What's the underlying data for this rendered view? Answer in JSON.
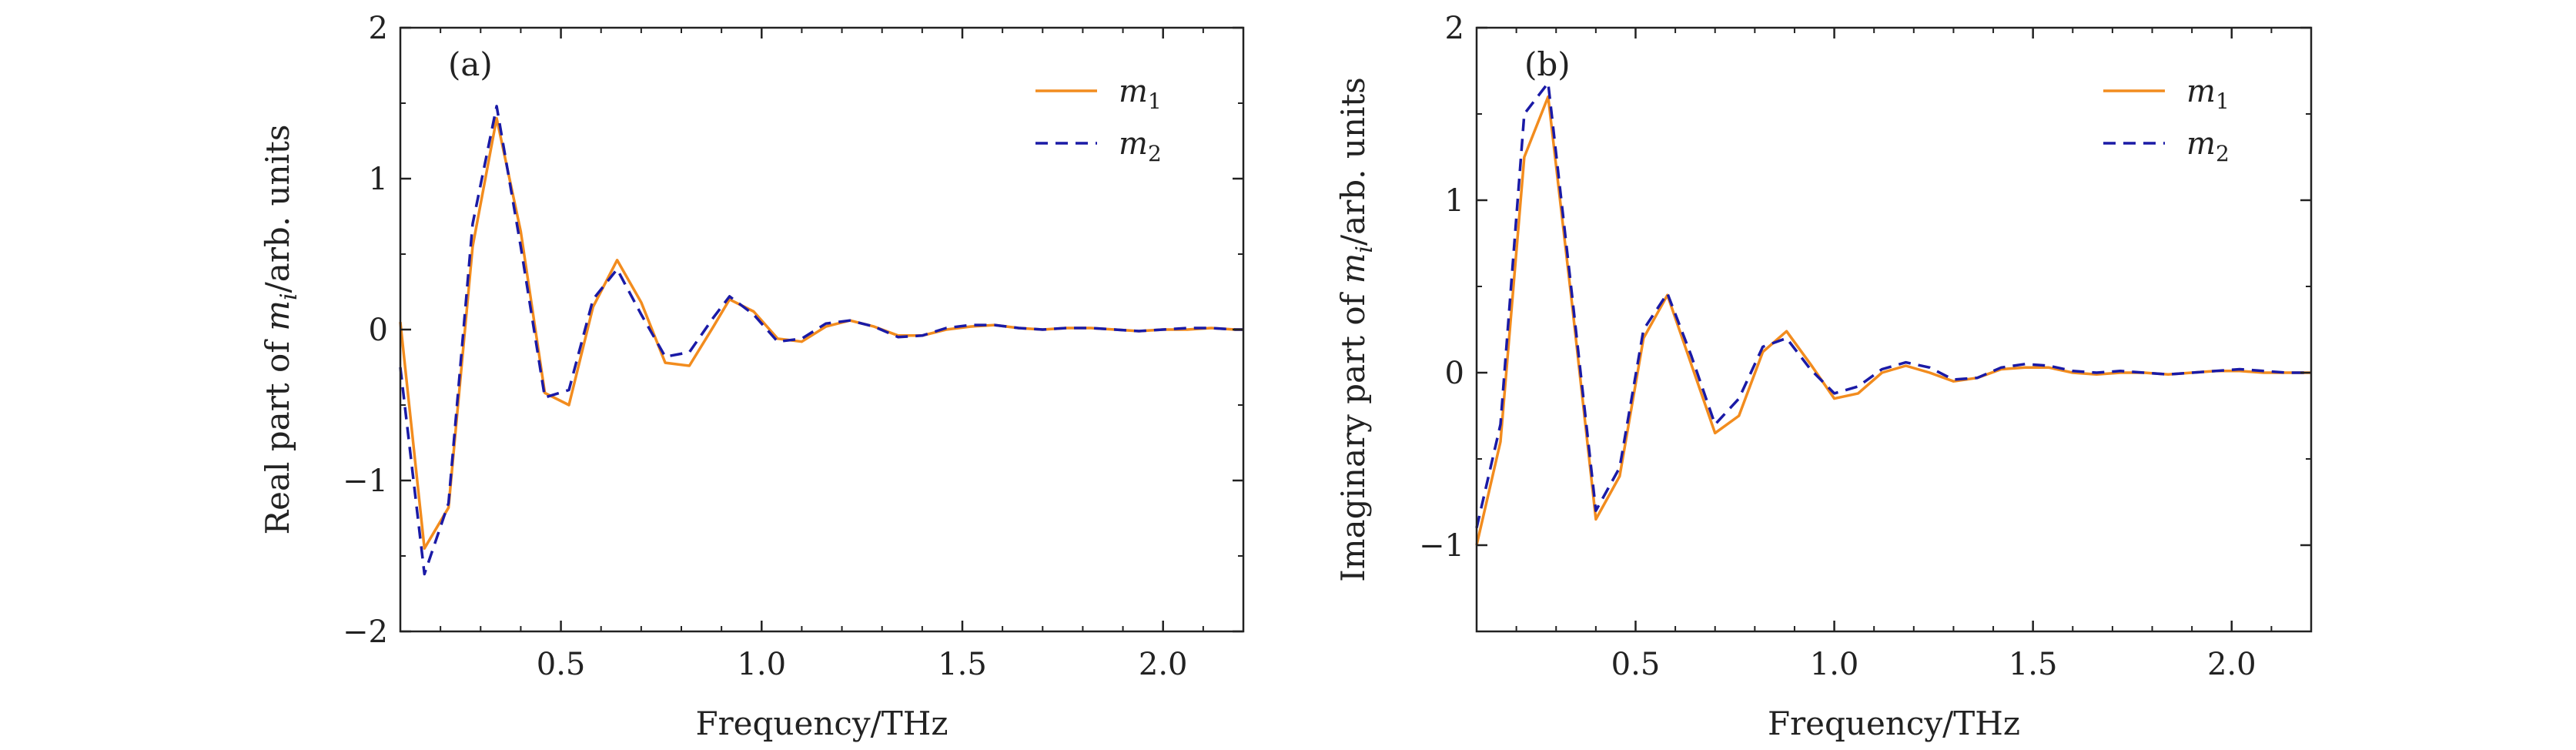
{
  "colors": {
    "m1": "#f28c1e",
    "m2": "#1a1aa6",
    "axis": "#222222"
  },
  "chart_data": [
    {
      "type": "line",
      "panel_label": "(a)",
      "xlabel": "Frequency/THz",
      "ylabel": "Real part of m_i/arb. units",
      "ylabel_parts": {
        "pre": "Real part of ",
        "var": "m",
        "sub": "i",
        "post": "/arb. units"
      },
      "xlim": [
        0.1,
        2.2
      ],
      "ylim": [
        -2,
        2
      ],
      "xticks": [
        0.5,
        1.0,
        1.5,
        2.0
      ],
      "xtick_labels": [
        "0.5",
        "1.0",
        "1.5",
        "2.0"
      ],
      "yticks": [
        -2,
        -1,
        0,
        1,
        2
      ],
      "ytick_labels": [
        "−2",
        "−1",
        "0",
        "1",
        "2"
      ],
      "legend_position": "top-right",
      "series": [
        {
          "name": "m1",
          "label_var": "m",
          "label_sub": "1",
          "style": "solid",
          "x": [
            0.1,
            0.16,
            0.22,
            0.28,
            0.34,
            0.4,
            0.46,
            0.52,
            0.58,
            0.64,
            0.7,
            0.76,
            0.82,
            0.88,
            0.92,
            0.98,
            1.04,
            1.1,
            1.16,
            1.22,
            1.28,
            1.34,
            1.4,
            1.46,
            1.52,
            1.58,
            1.64,
            1.7,
            1.76,
            1.82,
            1.88,
            1.94,
            2.0,
            2.06,
            2.12,
            2.18,
            2.2
          ],
          "y": [
            0.05,
            -1.45,
            -1.18,
            0.55,
            1.4,
            0.65,
            -0.42,
            -0.5,
            0.15,
            0.46,
            0.18,
            -0.22,
            -0.24,
            0.02,
            0.2,
            0.12,
            -0.06,
            -0.08,
            0.02,
            0.06,
            0.02,
            -0.04,
            -0.04,
            0.0,
            0.02,
            0.03,
            0.01,
            0.0,
            0.01,
            0.01,
            0.0,
            -0.01,
            0.0,
            0.0,
            0.01,
            0.0,
            0.0
          ]
        },
        {
          "name": "m2",
          "label_var": "m",
          "label_sub": "2",
          "style": "dashed",
          "x": [
            0.1,
            0.16,
            0.22,
            0.28,
            0.34,
            0.4,
            0.46,
            0.52,
            0.58,
            0.64,
            0.7,
            0.76,
            0.82,
            0.88,
            0.92,
            0.98,
            1.04,
            1.1,
            1.16,
            1.22,
            1.28,
            1.34,
            1.4,
            1.46,
            1.52,
            1.58,
            1.64,
            1.7,
            1.76,
            1.82,
            1.88,
            1.94,
            2.0,
            2.06,
            2.12,
            2.18,
            2.2
          ],
          "y": [
            -0.25,
            -1.62,
            -1.15,
            0.7,
            1.48,
            0.55,
            -0.45,
            -0.4,
            0.2,
            0.4,
            0.1,
            -0.18,
            -0.15,
            0.08,
            0.22,
            0.1,
            -0.08,
            -0.06,
            0.04,
            0.06,
            0.02,
            -0.05,
            -0.04,
            0.01,
            0.03,
            0.03,
            0.01,
            0.0,
            0.01,
            0.01,
            0.0,
            -0.01,
            0.0,
            0.01,
            0.01,
            0.0,
            0.0
          ]
        }
      ]
    },
    {
      "type": "line",
      "panel_label": "(b)",
      "xlabel": "Frequency/THz",
      "ylabel": "Imaginary part of m_i/arb. units",
      "ylabel_parts": {
        "pre": "Imaginary part of ",
        "var": "m",
        "sub": "i",
        "post": "/arb. units"
      },
      "xlim": [
        0.1,
        2.2
      ],
      "ylim": [
        -1.5,
        2
      ],
      "xticks": [
        0.5,
        1.0,
        1.5,
        2.0
      ],
      "xtick_labels": [
        "0.5",
        "1.0",
        "1.5",
        "2.0"
      ],
      "yticks": [
        -1,
        0,
        1,
        2
      ],
      "ytick_labels": [
        "−1",
        "0",
        "1",
        "2"
      ],
      "legend_position": "top-right",
      "series": [
        {
          "name": "m1",
          "label_var": "m",
          "label_sub": "1",
          "style": "solid",
          "x": [
            0.1,
            0.16,
            0.22,
            0.28,
            0.34,
            0.4,
            0.46,
            0.52,
            0.58,
            0.64,
            0.7,
            0.76,
            0.82,
            0.88,
            0.94,
            1.0,
            1.06,
            1.12,
            1.18,
            1.24,
            1.3,
            1.36,
            1.42,
            1.48,
            1.54,
            1.6,
            1.66,
            1.72,
            1.78,
            1.84,
            1.9,
            1.96,
            2.02,
            2.08,
            2.14,
            2.2
          ],
          "y": [
            -1.0,
            -0.4,
            1.25,
            1.6,
            0.4,
            -0.85,
            -0.6,
            0.2,
            0.45,
            0.05,
            -0.35,
            -0.25,
            0.12,
            0.24,
            0.05,
            -0.15,
            -0.12,
            0.0,
            0.04,
            0.0,
            -0.05,
            -0.03,
            0.02,
            0.03,
            0.03,
            0.0,
            -0.01,
            0.0,
            0.0,
            -0.01,
            0.0,
            0.01,
            0.01,
            0.0,
            0.0,
            0.0
          ]
        },
        {
          "name": "m2",
          "label_var": "m",
          "label_sub": "2",
          "style": "dashed",
          "x": [
            0.1,
            0.16,
            0.22,
            0.28,
            0.34,
            0.4,
            0.46,
            0.52,
            0.58,
            0.64,
            0.7,
            0.76,
            0.82,
            0.88,
            0.94,
            1.0,
            1.06,
            1.12,
            1.18,
            1.24,
            1.3,
            1.36,
            1.42,
            1.48,
            1.54,
            1.6,
            1.66,
            1.72,
            1.78,
            1.84,
            1.9,
            1.96,
            2.02,
            2.08,
            2.14,
            2.2
          ],
          "y": [
            -0.9,
            -0.3,
            1.5,
            1.68,
            0.45,
            -0.8,
            -0.55,
            0.25,
            0.46,
            0.1,
            -0.3,
            -0.15,
            0.15,
            0.2,
            0.02,
            -0.12,
            -0.08,
            0.02,
            0.06,
            0.03,
            -0.04,
            -0.03,
            0.03,
            0.05,
            0.04,
            0.01,
            0.0,
            0.01,
            0.0,
            -0.01,
            0.0,
            0.01,
            0.02,
            0.01,
            0.0,
            0.0
          ]
        }
      ]
    }
  ]
}
